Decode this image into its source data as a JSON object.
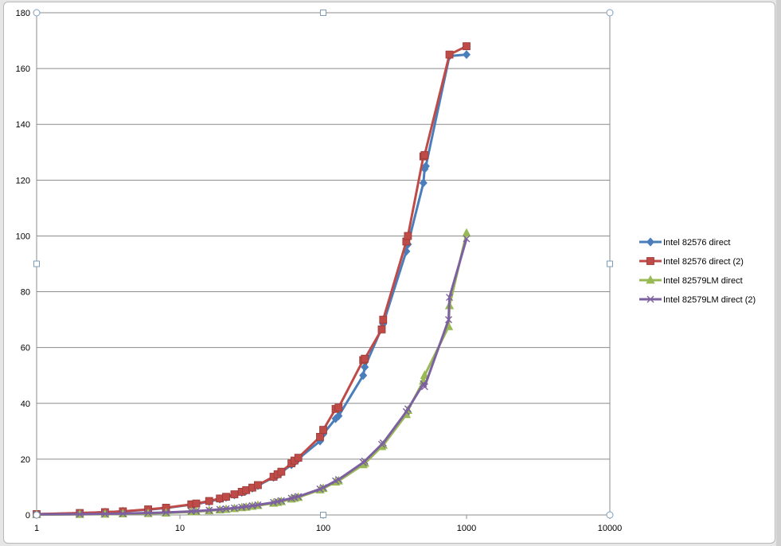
{
  "chart_data": {
    "type": "line",
    "title": "",
    "xlabel": "",
    "ylabel": "",
    "x_scale": "log",
    "xlim": [
      1,
      10000
    ],
    "ylim": [
      0,
      180
    ],
    "grid": "horizontal",
    "legend_position": "right",
    "x_tick_labels": [
      "1",
      "10",
      "100",
      "1000",
      "10000"
    ],
    "y_tick_labels": [
      "0",
      "20",
      "40",
      "60",
      "80",
      "100",
      "120",
      "140",
      "160",
      "180"
    ],
    "series": [
      {
        "name": "Intel 82576 direct",
        "color": "#4a7ebb",
        "marker": "diamond",
        "points": [
          [
            1,
            0.3
          ],
          [
            2,
            0.6
          ],
          [
            3,
            1.0
          ],
          [
            4,
            1.3
          ],
          [
            6,
            1.9
          ],
          [
            8,
            2.5
          ],
          [
            12,
            3.7
          ],
          [
            13,
            3.9
          ],
          [
            16,
            4.8
          ],
          [
            19,
            5.7
          ],
          [
            21,
            6.3
          ],
          [
            24,
            7.2
          ],
          [
            27,
            8.1
          ],
          [
            29,
            8.7
          ],
          [
            32,
            9.6
          ],
          [
            35,
            10.5
          ],
          [
            45,
            13.5
          ],
          [
            48,
            14.4
          ],
          [
            51,
            15.3
          ],
          [
            60,
            18.0
          ],
          [
            63,
            18.9
          ],
          [
            67,
            20.1
          ],
          [
            95,
            26.5
          ],
          [
            100,
            29.0
          ],
          [
            122,
            34.5
          ],
          [
            128,
            35.5
          ],
          [
            190,
            50.0
          ],
          [
            195,
            53.0
          ],
          [
            256,
            67.0
          ],
          [
            262,
            68.5
          ],
          [
            380,
            94.5
          ],
          [
            390,
            97.0
          ],
          [
            500,
            119.0
          ],
          [
            510,
            124.0
          ],
          [
            520,
            125.0
          ],
          [
            760,
            164.5
          ],
          [
            1000,
            165.0
          ]
        ]
      },
      {
        "name": "Intel 82576 direct (2)",
        "color": "#be4b48",
        "marker": "square",
        "points": [
          [
            1,
            0.3
          ],
          [
            2,
            0.7
          ],
          [
            3,
            1.0
          ],
          [
            4,
            1.3
          ],
          [
            6,
            2.0
          ],
          [
            8,
            2.6
          ],
          [
            12,
            3.8
          ],
          [
            13,
            4.1
          ],
          [
            16,
            5.0
          ],
          [
            19,
            5.9
          ],
          [
            21,
            6.5
          ],
          [
            24,
            7.4
          ],
          [
            27,
            8.3
          ],
          [
            29,
            8.9
          ],
          [
            32,
            9.8
          ],
          [
            35,
            10.7
          ],
          [
            45,
            13.7
          ],
          [
            48,
            14.6
          ],
          [
            51,
            15.5
          ],
          [
            60,
            18.5
          ],
          [
            63,
            19.5
          ],
          [
            67,
            20.5
          ],
          [
            95,
            28.0
          ],
          [
            100,
            30.5
          ],
          [
            122,
            38.0
          ],
          [
            128,
            38.5
          ],
          [
            190,
            55.5
          ],
          [
            195,
            56.0
          ],
          [
            256,
            66.5
          ],
          [
            262,
            70.0
          ],
          [
            380,
            98.0
          ],
          [
            390,
            100.0
          ],
          [
            500,
            128.5
          ],
          [
            510,
            129.0
          ],
          [
            760,
            165.0
          ],
          [
            1000,
            168.0
          ]
        ]
      },
      {
        "name": "Intel 82579LM direct",
        "color": "#98b954",
        "marker": "triangle",
        "points": [
          [
            1,
            0.1
          ],
          [
            2,
            0.2
          ],
          [
            3,
            0.3
          ],
          [
            4,
            0.4
          ],
          [
            6,
            0.5
          ],
          [
            8,
            0.7
          ],
          [
            12,
            1.1
          ],
          [
            13,
            1.2
          ],
          [
            16,
            1.5
          ],
          [
            19,
            1.8
          ],
          [
            21,
            2.0
          ],
          [
            24,
            2.3
          ],
          [
            27,
            2.6
          ],
          [
            29,
            2.8
          ],
          [
            32,
            3.1
          ],
          [
            35,
            3.4
          ],
          [
            45,
            4.2
          ],
          [
            48,
            4.5
          ],
          [
            51,
            4.8
          ],
          [
            60,
            5.7
          ],
          [
            63,
            6.0
          ],
          [
            67,
            6.3
          ],
          [
            95,
            9.0
          ],
          [
            100,
            9.5
          ],
          [
            122,
            11.8
          ],
          [
            128,
            12.2
          ],
          [
            190,
            18.0
          ],
          [
            195,
            18.5
          ],
          [
            256,
            24.5
          ],
          [
            262,
            25.0
          ],
          [
            380,
            36.0
          ],
          [
            390,
            37.5
          ],
          [
            500,
            48.0
          ],
          [
            510,
            50.0
          ],
          [
            750,
            67.5
          ],
          [
            760,
            75.0
          ],
          [
            1000,
            101.0
          ]
        ]
      },
      {
        "name": "Intel 82579LM direct (2)",
        "color": "#7d60a0",
        "marker": "x",
        "points": [
          [
            1,
            0.2
          ],
          [
            2,
            0.3
          ],
          [
            3,
            0.4
          ],
          [
            4,
            0.5
          ],
          [
            6,
            0.7
          ],
          [
            8,
            0.9
          ],
          [
            12,
            1.3
          ],
          [
            13,
            1.4
          ],
          [
            16,
            1.7
          ],
          [
            19,
            2.0
          ],
          [
            21,
            2.2
          ],
          [
            24,
            2.5
          ],
          [
            27,
            2.8
          ],
          [
            29,
            3.0
          ],
          [
            32,
            3.3
          ],
          [
            35,
            3.6
          ],
          [
            45,
            4.5
          ],
          [
            48,
            4.8
          ],
          [
            51,
            5.1
          ],
          [
            60,
            6.0
          ],
          [
            63,
            6.3
          ],
          [
            67,
            6.6
          ],
          [
            95,
            9.3
          ],
          [
            100,
            9.8
          ],
          [
            122,
            12.2
          ],
          [
            128,
            12.7
          ],
          [
            190,
            18.8
          ],
          [
            195,
            19.3
          ],
          [
            256,
            25.3
          ],
          [
            262,
            25.8
          ],
          [
            380,
            37.0
          ],
          [
            390,
            38.0
          ],
          [
            500,
            47.0
          ],
          [
            510,
            46.0
          ],
          [
            750,
            70.0
          ],
          [
            760,
            78.0
          ],
          [
            1000,
            99.0
          ]
        ]
      }
    ]
  }
}
